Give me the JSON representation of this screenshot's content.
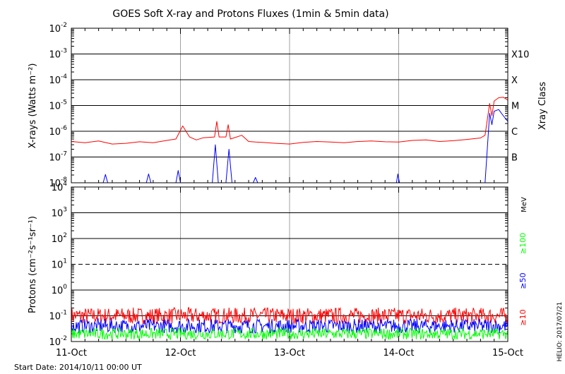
{
  "title": "GOES Soft X-ray and Protons Fluxes   (1min & 5min data)",
  "start_date_label": "Start Date: 2014/10/11 00:00 UT",
  "credit": "HELIO: 2017/07/21",
  "colors": {
    "red": "#ff0000",
    "blue": "#0000ff",
    "green": "#00ff00",
    "grid_gray": "#a0a0a0",
    "axis": "#000000"
  },
  "chart_data": [
    {
      "type": "line",
      "name": "xray-panel",
      "ylabel": "X-rays (Watts m⁻²)",
      "y_scale": "log",
      "ylim": [
        1e-08,
        0.01
      ],
      "xlim": [
        "2014-10-11",
        "2014-10-15"
      ],
      "x_ticks": [
        "11-Oct",
        "12-Oct",
        "13-Oct",
        "14-Oct",
        "15-Oct"
      ],
      "y_ticks": [
        {
          "mant": "10",
          "exp": "-8"
        },
        {
          "mant": "10",
          "exp": "-7"
        },
        {
          "mant": "10",
          "exp": "-6"
        },
        {
          "mant": "10",
          "exp": "-5"
        },
        {
          "mant": "10",
          "exp": "-4"
        },
        {
          "mant": "10",
          "exp": "-3"
        },
        {
          "mant": "10",
          "exp": "-2"
        }
      ],
      "right_label": "Xray Class",
      "flare_classes": [
        {
          "label": "B",
          "flux": 1e-07
        },
        {
          "label": "C",
          "flux": 1e-06
        },
        {
          "label": "M",
          "flux": 1e-05
        },
        {
          "label": "X",
          "flux": 0.0001
        },
        {
          "label": "X10",
          "flux": 0.001
        }
      ],
      "series": [
        {
          "color": "red",
          "x": [
            "2014-10-11 00:00",
            "2014-10-11 03:00",
            "2014-10-11 06:00",
            "2014-10-11 09:00",
            "2014-10-11 12:00",
            "2014-10-11 15:00",
            "2014-10-11 18:00",
            "2014-10-11 21:00",
            "2014-10-11 23:00",
            "2014-10-12 00:30",
            "2014-10-12 02:00",
            "2014-10-12 03:30",
            "2014-10-12 05:00",
            "2014-10-12 07:30",
            "2014-10-12 08:00",
            "2014-10-12 08:30",
            "2014-10-12 10:00",
            "2014-10-12 10:30",
            "2014-10-12 11:00",
            "2014-10-12 13:30",
            "2014-10-12 15:00",
            "2014-10-12 16:30",
            "2014-10-12 18:00",
            "2014-10-12 21:00",
            "2014-10-13 00:00",
            "2014-10-13 03:00",
            "2014-10-13 06:00",
            "2014-10-13 09:00",
            "2014-10-13 12:00",
            "2014-10-13 15:00",
            "2014-10-13 18:00",
            "2014-10-13 21:00",
            "2014-10-14 00:00",
            "2014-10-14 03:00",
            "2014-10-14 06:00",
            "2014-10-14 09:00",
            "2014-10-14 12:00",
            "2014-10-14 15:00",
            "2014-10-14 18:00",
            "2014-10-14 19:00",
            "2014-10-14 20:00",
            "2014-10-14 20:30",
            "2014-10-14 21:00",
            "2014-10-14 22:00",
            "2014-10-14 23:00",
            "2014-10-15 00:00"
          ],
          "values": [
            4e-07,
            3.6e-07,
            4.2e-07,
            3.2e-07,
            3.4e-07,
            3.9e-07,
            3.6e-07,
            4.4e-07,
            5e-07,
            1.6e-06,
            6e-07,
            4.6e-07,
            5.6e-07,
            6e-07,
            2.4e-06,
            6e-07,
            6e-07,
            1.8e-06,
            5e-07,
            7e-07,
            4e-07,
            3.8e-07,
            3.7e-07,
            3.4e-07,
            3.2e-07,
            3.7e-07,
            4e-07,
            3.8e-07,
            3.6e-07,
            4e-07,
            4.2e-07,
            3.9e-07,
            3.8e-07,
            4.4e-07,
            4.6e-07,
            4e-07,
            4.3e-07,
            4.8e-07,
            5.5e-07,
            7e-07,
            1.2e-05,
            4e-06,
            1.5e-05,
            2e-05,
            2.1e-05,
            1.6e-05
          ]
        },
        {
          "color": "blue",
          "x": [
            "2014-10-11 00:00",
            "2014-10-11 07:00",
            "2014-10-11 07:30",
            "2014-10-11 08:00",
            "2014-10-11 16:30",
            "2014-10-11 17:00",
            "2014-10-11 17:30",
            "2014-10-11 23:00",
            "2014-10-11 23:30",
            "2014-10-12 00:00",
            "2014-10-12 07:00",
            "2014-10-12 07:40",
            "2014-10-12 08:20",
            "2014-10-12 10:00",
            "2014-10-12 10:40",
            "2014-10-12 11:20",
            "2014-10-12 16:00",
            "2014-10-12 16:30",
            "2014-10-12 17:00",
            "2014-10-13 23:30",
            "2014-10-13 23:50",
            "2014-10-14 00:10",
            "2014-10-14 18:00",
            "2014-10-14 19:00",
            "2014-10-14 20:00",
            "2014-10-14 20:30",
            "2014-10-14 21:00",
            "2014-10-14 22:00",
            "2014-10-14 23:00",
            "2014-10-15 00:00"
          ],
          "values": [
            1e-08,
            1e-08,
            2.1e-08,
            1e-08,
            1e-08,
            2.2e-08,
            1e-08,
            1e-08,
            3e-08,
            1e-08,
            1e-08,
            3e-07,
            1e-08,
            1e-08,
            2e-07,
            1e-08,
            1e-08,
            1.6e-08,
            1e-08,
            1e-08,
            2.2e-08,
            1e-08,
            1e-08,
            1e-08,
            5e-06,
            1.8e-06,
            6e-06,
            7e-06,
            4e-06,
            2.4e-06
          ]
        }
      ]
    },
    {
      "type": "line",
      "name": "proton-panel",
      "ylabel": "Protons (cm⁻²s⁻¹sr⁻¹)",
      "y_scale": "log",
      "ylim": [
        0.01,
        10000
      ],
      "xlim": [
        "2014-10-11",
        "2014-10-15"
      ],
      "x_ticks": [
        "11-Oct",
        "12-Oct",
        "13-Oct",
        "14-Oct",
        "15-Oct"
      ],
      "y_ticks": [
        {
          "mant": "10",
          "exp": "-2"
        },
        {
          "mant": "10",
          "exp": "-1"
        },
        {
          "mant": "10",
          "exp": "0"
        },
        {
          "mant": "10",
          "exp": "1"
        },
        {
          "mant": "10",
          "exp": "2"
        },
        {
          "mant": "10",
          "exp": "3"
        },
        {
          "mant": "10",
          "exp": "4"
        }
      ],
      "threshold": {
        "value": 10,
        "style": "dashed"
      },
      "unit_label": "MeV",
      "series": [
        {
          "name": "≥10",
          "color": "red",
          "approx_value": 0.1
        },
        {
          "name": "≥50",
          "color": "blue",
          "approx_value": 0.04
        },
        {
          "name": "≥100",
          "color": "green",
          "approx_value": 0.02
        }
      ]
    }
  ]
}
